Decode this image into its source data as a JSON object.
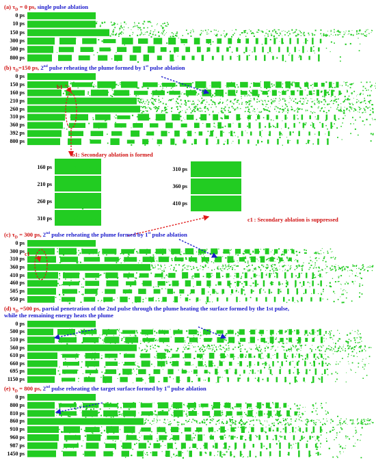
{
  "panels": [
    {
      "id": "a",
      "tag": "(a)",
      "tau_value": " = 0 ps, ",
      "text": "single pulse ablation",
      "sup": "",
      "text2": "",
      "rows": [
        "0 ps",
        "10 ps",
        "150 ps",
        "300 ps",
        "500 ps",
        "800 ps"
      ]
    },
    {
      "id": "b",
      "tag": "(b)",
      "tau_value": "=150 ps, ",
      "text": "2",
      "sup": "nd",
      "text2": " pulse reheating the plume formed by 1",
      "sup2": "st",
      "text3": " pulse ablation",
      "rows": [
        "0 ps",
        "150 ps",
        "160 ps",
        "210 ps",
        "260 ps",
        "310 ps",
        "360 ps",
        "392 ps",
        "800 ps"
      ],
      "marker": "b1"
    },
    {
      "id": "c",
      "tag": "(c)",
      "tau_value": " = 300 ps, ",
      "text": "2",
      "sup": "nd",
      "text2": " pulse reheating the plume formed by 1",
      "sup2": "st",
      "text3": " pulse ablation",
      "rows": [
        "0 ps",
        "300 ps",
        "310 ps",
        "360 ps",
        "410 ps",
        "460 ps",
        "505 ps",
        "950 ps"
      ],
      "marker": "c1"
    },
    {
      "id": "d",
      "tag": "(d)",
      "tau_value": " =500 ps, ",
      "text": "partial penetration of the 2nd pulse through the  plume heating the surface formed by the 1st pulse,",
      "sup": "",
      "text2": "",
      "line2": "while the remaining energy heats the plume",
      "rows": [
        "0 ps",
        "500 ps",
        "510 ps",
        "560 ps",
        "610 ps",
        "660 ps",
        "695 ps",
        "1150 ps"
      ]
    },
    {
      "id": "e",
      "tag": "(e)",
      "tau_value": " = 800 ps, ",
      "text": "2",
      "sup": "nd",
      "text2": " pulse reheating the target surface formed by 1",
      "sup2": "st",
      "text3": " pulse ablation",
      "rows": [
        "0 ps",
        "800 ps",
        "810 ps",
        "860 ps",
        "910 ps",
        "960 ps",
        "987 ps",
        "1450 ps"
      ]
    }
  ],
  "tau_symbol": "τ",
  "tau_sub": "D",
  "insets": {
    "b1": {
      "note": "b1: Secondary ablation is formed",
      "rows": [
        "160 ps",
        "210 ps",
        "260 ps",
        "310 ps"
      ]
    },
    "c1": {
      "note": "c1 : Secondary ablation is suppressed",
      "rows": [
        "310 ps",
        "360 ps",
        "410 ps"
      ]
    }
  },
  "colors": {
    "material": "#22cc22",
    "heading_tag": "#d01010",
    "heading_text": "#1a1acc",
    "arrow_red": "#e01818",
    "arrow_blue": "#1a1acc"
  }
}
